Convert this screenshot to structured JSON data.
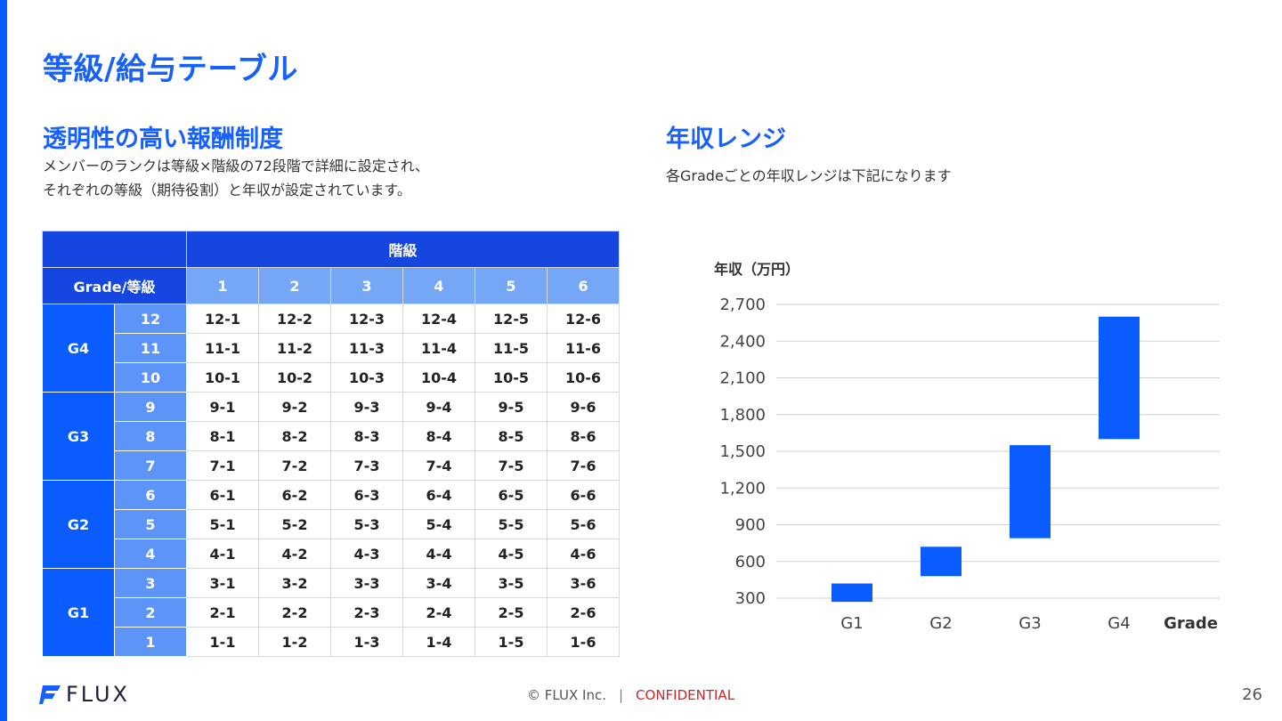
{
  "page": {
    "title": "等級/給与テーブル",
    "page_number": "26"
  },
  "left_section": {
    "title": "透明性の高い報酬制度",
    "desc_line1": "メンバーのランクは等級×階級の72段階で詳細に設定され、",
    "desc_line2": "それぞれの等級（期待役割）と年収が設定されています。"
  },
  "right_section": {
    "title": "年収レンジ",
    "desc": "各Gradeごとの年収レンジは下記になります"
  },
  "table": {
    "header_class": "階級",
    "header_grade": "Grade/等級",
    "columns": [
      "1",
      "2",
      "3",
      "4",
      "5",
      "6"
    ],
    "groups": [
      {
        "grade": "G4",
        "levels": [
          {
            "level": "12",
            "cells": [
              "12-1",
              "12-2",
              "12-3",
              "12-4",
              "12-5",
              "12-6"
            ]
          },
          {
            "level": "11",
            "cells": [
              "11-1",
              "11-2",
              "11-3",
              "11-4",
              "11-5",
              "11-6"
            ]
          },
          {
            "level": "10",
            "cells": [
              "10-1",
              "10-2",
              "10-3",
              "10-4",
              "10-5",
              "10-6"
            ]
          }
        ]
      },
      {
        "grade": "G3",
        "levels": [
          {
            "level": "9",
            "cells": [
              "9-1",
              "9-2",
              "9-3",
              "9-4",
              "9-5",
              "9-6"
            ]
          },
          {
            "level": "8",
            "cells": [
              "8-1",
              "8-2",
              "8-3",
              "8-4",
              "8-5",
              "8-6"
            ]
          },
          {
            "level": "7",
            "cells": [
              "7-1",
              "7-2",
              "7-3",
              "7-4",
              "7-5",
              "7-6"
            ]
          }
        ]
      },
      {
        "grade": "G2",
        "levels": [
          {
            "level": "6",
            "cells": [
              "6-1",
              "6-2",
              "6-3",
              "6-4",
              "6-5",
              "6-6"
            ]
          },
          {
            "level": "5",
            "cells": [
              "5-1",
              "5-2",
              "5-3",
              "5-4",
              "5-5",
              "5-6"
            ]
          },
          {
            "level": "4",
            "cells": [
              "4-1",
              "4-2",
              "4-3",
              "4-4",
              "4-5",
              "4-6"
            ]
          }
        ]
      },
      {
        "grade": "G1",
        "levels": [
          {
            "level": "3",
            "cells": [
              "3-1",
              "3-2",
              "3-3",
              "3-4",
              "3-5",
              "3-6"
            ]
          },
          {
            "level": "2",
            "cells": [
              "2-1",
              "2-2",
              "2-3",
              "2-4",
              "2-5",
              "2-6"
            ]
          },
          {
            "level": "1",
            "cells": [
              "1-1",
              "1-2",
              "1-3",
              "1-4",
              "1-5",
              "1-6"
            ]
          }
        ]
      }
    ]
  },
  "chart_data": {
    "type": "bar",
    "ylabel": "年収（万円）",
    "xlabel": "Grade",
    "categories": [
      "G1",
      "G2",
      "G3",
      "G4"
    ],
    "ranges": [
      [
        270,
        420
      ],
      [
        480,
        720
      ],
      [
        790,
        1550
      ],
      [
        1600,
        2600
      ]
    ],
    "yticks": [
      "300",
      "600",
      "900",
      "1,200",
      "1,500",
      "1,800",
      "2,100",
      "2,400",
      "2,700"
    ],
    "ytick_values": [
      300,
      600,
      900,
      1200,
      1500,
      1800,
      2100,
      2400,
      2700
    ],
    "ylim": [
      300,
      2700
    ],
    "grid": true,
    "bar_color": "#0a5cff"
  },
  "footer": {
    "logo_text": "FLUX",
    "copyright": "© FLUX Inc.",
    "separator": "|",
    "confidential": "CONFIDENTIAL"
  }
}
